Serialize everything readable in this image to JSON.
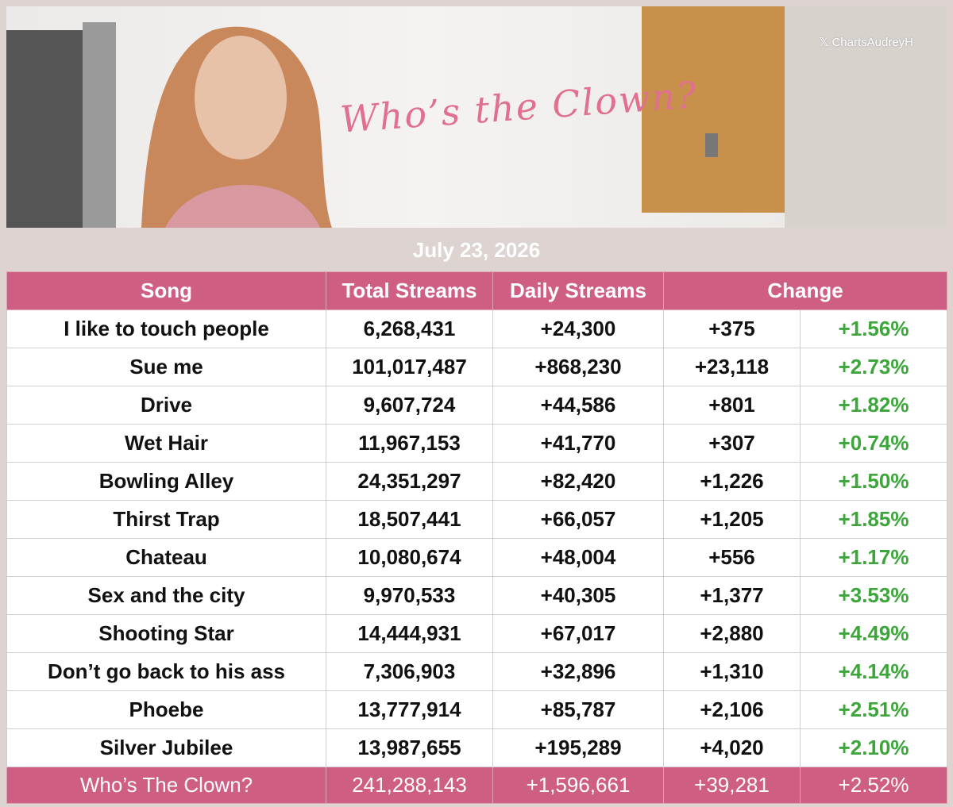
{
  "banner": {
    "title": "Who’s the Clown?",
    "watermark": "ChartsAudreyH"
  },
  "date": "July 23, 2026",
  "table": {
    "columns": [
      "Song",
      "Total Streams",
      "Daily Streams",
      "Change"
    ],
    "rows": [
      [
        "I like to touch people",
        "6,268,431",
        "+24,300",
        "+375",
        "+1.56%"
      ],
      [
        "Sue me",
        "101,017,487",
        "+868,230",
        "+23,118",
        "+2.73%"
      ],
      [
        "Drive",
        "9,607,724",
        "+44,586",
        "+801",
        "+1.82%"
      ],
      [
        "Wet Hair",
        "11,967,153",
        "+41,770",
        "+307",
        "+0.74%"
      ],
      [
        "Bowling Alley",
        "24,351,297",
        "+82,420",
        "+1,226",
        "+1.50%"
      ],
      [
        "Thirst Trap",
        "18,507,441",
        "+66,057",
        "+1,205",
        "+1.85%"
      ],
      [
        "Chateau",
        "10,080,674",
        "+48,004",
        "+556",
        "+1.17%"
      ],
      [
        "Sex and the city",
        "9,970,533",
        "+40,305",
        "+1,377",
        "+3.53%"
      ],
      [
        "Shooting Star",
        "14,444,931",
        "+67,017",
        "+2,880",
        "+4.49%"
      ],
      [
        "Don’t go back to his ass",
        "7,306,903",
        "+32,896",
        "+1,310",
        "+4.14%"
      ],
      [
        "Phoebe",
        "13,777,914",
        "+85,787",
        "+2,106",
        "+2.51%"
      ],
      [
        "Silver Jubilee",
        "13,987,655",
        "+195,289",
        "+4,020",
        "+2.10%"
      ]
    ],
    "total": [
      "Who’s The Clown?",
      "241,288,143",
      "+1,596,661",
      "+39,281",
      "+2.52%"
    ]
  }
}
